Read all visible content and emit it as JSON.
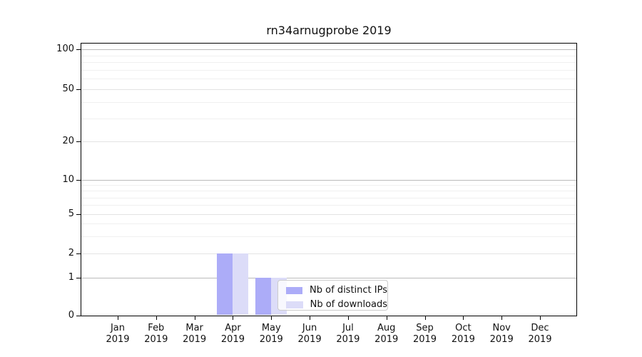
{
  "title": "rn34arnugprobe 2019",
  "chart_data": {
    "type": "bar",
    "title": "rn34arnugprobe 2019",
    "categories": [
      "Jan",
      "Feb",
      "Mar",
      "Apr",
      "May",
      "Jun",
      "Jul",
      "Aug",
      "Sep",
      "Oct",
      "Nov",
      "Dec"
    ],
    "x_year_label": "2019",
    "series": [
      {
        "name": "Nb of distinct IPs",
        "color": "#acacf8",
        "values": [
          0,
          0,
          0,
          2,
          1,
          0,
          0,
          0,
          0,
          0,
          0,
          0
        ]
      },
      {
        "name": "Nb of downloads",
        "color": "#dcdcf8",
        "values": [
          0,
          0,
          0,
          2,
          1,
          0,
          0,
          0,
          0,
          0,
          0,
          0
        ]
      }
    ],
    "y_axis": {
      "scale": "symlog",
      "ticks": [
        0,
        1,
        2,
        5,
        10,
        20,
        50,
        100
      ],
      "minor_gridlines": [
        3,
        4,
        6,
        7,
        8,
        9,
        30,
        40,
        60,
        70,
        80,
        90
      ],
      "range_top": 112
    },
    "grid": {
      "horizontal": true,
      "vertical": false
    },
    "legend_position": "lower center, inside plot"
  },
  "colors": {
    "bar_distinct_ips": "#acacf8",
    "bar_downloads": "#dcdcf8",
    "grid_decade": "#bababa",
    "grid_labeled": "#e3e3e3",
    "grid_minor": "#f0f0f0",
    "spine": "#000000",
    "text": "#111111",
    "legend_border": "#cbcbcb"
  }
}
